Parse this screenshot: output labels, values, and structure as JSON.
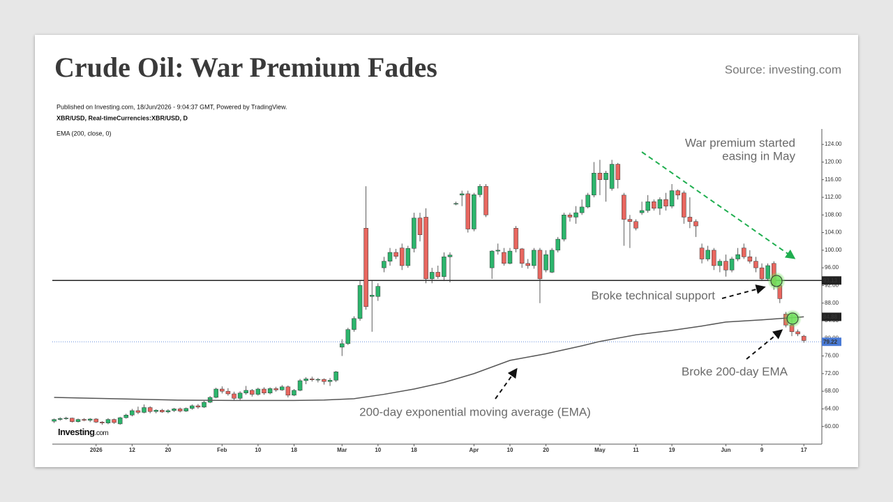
{
  "header": {
    "title": "Crude Oil: War Premium Fades",
    "source": "Source: investing.com"
  },
  "chart_data": {
    "type": "candlestick",
    "published": "Published on Investing.com, 18/Jun/2026 - 9:04:37 GMT, Powered by TradingView.",
    "symbol": "XBR/USD, Real-timeCurrencies:XBR/USD, D",
    "indicator": "EMA (200, close, 0)",
    "logo": "Investing",
    "logo_suffix": ".com",
    "annotations": [
      [
        "War premium started",
        "easing in May"
      ],
      "Broke technical support",
      "Broke 200-day EMA",
      "200-day exponential moving average (EMA)"
    ],
    "up_color": "#2cb56c",
    "down_color": "#e8665f",
    "xlim": [
      -0.3,
      128
    ],
    "xticks": [
      {
        "value": 7,
        "label": "2026"
      },
      {
        "value": 13,
        "label": "12"
      },
      {
        "value": 19,
        "label": "20"
      },
      {
        "value": 28,
        "label": "Feb"
      },
      {
        "value": 34,
        "label": "10"
      },
      {
        "value": 40,
        "label": "18"
      },
      {
        "value": 48,
        "label": "Mar"
      },
      {
        "value": 54,
        "label": "10"
      },
      {
        "value": 60,
        "label": "18"
      },
      {
        "value": 70,
        "label": "Apr"
      },
      {
        "value": 76,
        "label": "10"
      },
      {
        "value": 82,
        "label": "20"
      },
      {
        "value": 91,
        "label": "May"
      },
      {
        "value": 97,
        "label": "11"
      },
      {
        "value": 103,
        "label": "19"
      },
      {
        "value": 112,
        "label": "Jun"
      },
      {
        "value": 118,
        "label": "9"
      },
      {
        "value": 125,
        "label": "17"
      }
    ],
    "ylim": [
      56,
      127.5
    ],
    "yticks": [
      {
        "value": 60,
        "label": "60.00"
      },
      {
        "value": 64,
        "label": "64.00"
      },
      {
        "value": 68,
        "label": "68.00"
      },
      {
        "value": 72,
        "label": "72.00"
      },
      {
        "value": 76,
        "label": "76.00"
      },
      {
        "value": 80,
        "label": "80.00"
      },
      {
        "value": 84,
        "label": "84.00"
      },
      {
        "value": 88,
        "label": "88.00"
      },
      {
        "value": 92,
        "label": "92.00"
      },
      {
        "value": 96,
        "label": "96.00"
      },
      {
        "value": 100,
        "label": "100.00"
      },
      {
        "value": 104,
        "label": "104.00"
      },
      {
        "value": 108,
        "label": "108.00"
      },
      {
        "value": 112,
        "label": "112.00"
      },
      {
        "value": 116,
        "label": "116.00"
      },
      {
        "value": 120,
        "label": "120.00"
      },
      {
        "value": 124,
        "label": "124.00"
      }
    ],
    "candles": [
      [
        61.2,
        61.8,
        60.8,
        61.6
      ],
      [
        61.6,
        62.1,
        61.3,
        61.8
      ],
      [
        61.8,
        62.2,
        61.5,
        61.9
      ],
      [
        61.9,
        62.0,
        60.9,
        61.1
      ],
      [
        61.1,
        61.8,
        60.9,
        61.6
      ],
      [
        61.6,
        61.9,
        61.2,
        61.4
      ],
      [
        61.4,
        61.9,
        61.0,
        61.7
      ],
      [
        61.7,
        61.9,
        60.8,
        61.0
      ],
      [
        61.0,
        61.2,
        60.4,
        60.8
      ],
      [
        60.8,
        61.9,
        60.5,
        61.6
      ],
      [
        61.6,
        61.8,
        60.6,
        60.9
      ],
      [
        60.6,
        62.2,
        60.4,
        62.0
      ],
      [
        62.0,
        62.9,
        61.8,
        62.6
      ],
      [
        62.6,
        64.0,
        62.3,
        63.6
      ],
      [
        63.6,
        64.5,
        62.8,
        63.2
      ],
      [
        63.2,
        65.0,
        63.0,
        64.3
      ],
      [
        64.3,
        64.6,
        63.0,
        63.4
      ],
      [
        63.4,
        63.9,
        63.0,
        63.7
      ],
      [
        63.7,
        64.0,
        63.1,
        63.3
      ],
      [
        63.3,
        63.9,
        63.0,
        63.6
      ],
      [
        63.6,
        64.2,
        63.3,
        64.0
      ],
      [
        64.0,
        64.3,
        63.2,
        63.5
      ],
      [
        63.5,
        64.3,
        63.3,
        64.1
      ],
      [
        64.1,
        65.0,
        63.8,
        64.7
      ],
      [
        64.7,
        65.1,
        64.0,
        64.4
      ],
      [
        64.4,
        65.8,
        64.2,
        65.5
      ],
      [
        65.5,
        66.9,
        65.3,
        66.6
      ],
      [
        66.6,
        68.8,
        66.4,
        68.5
      ],
      [
        68.5,
        69.1,
        67.5,
        68.0
      ],
      [
        68.0,
        68.7,
        67.0,
        67.4
      ],
      [
        67.4,
        67.9,
        66.0,
        66.4
      ],
      [
        66.4,
        68.0,
        66.0,
        67.6
      ],
      [
        67.6,
        69.2,
        67.2,
        68.2
      ],
      [
        68.2,
        68.5,
        66.8,
        67.3
      ],
      [
        67.3,
        68.8,
        67.0,
        68.5
      ],
      [
        68.5,
        68.9,
        67.2,
        67.6
      ],
      [
        67.6,
        68.9,
        67.3,
        68.6
      ],
      [
        68.6,
        69.0,
        67.9,
        68.3
      ],
      [
        68.3,
        69.4,
        68.1,
        69.0
      ],
      [
        69.0,
        69.3,
        66.6,
        67.1
      ],
      [
        67.1,
        68.5,
        66.9,
        68.2
      ],
      [
        68.2,
        70.8,
        68.0,
        70.4
      ],
      [
        70.4,
        71.2,
        69.6,
        70.8
      ],
      [
        70.8,
        71.3,
        70.2,
        70.6
      ],
      [
        70.6,
        71.0,
        70.0,
        70.7
      ],
      [
        70.7,
        70.9,
        69.5,
        70.2
      ],
      [
        70.2,
        71.0,
        69.2,
        70.5
      ],
      [
        70.5,
        72.6,
        70.1,
        72.4
      ],
      [
        78.0,
        79.8,
        76.0,
        78.8
      ],
      [
        78.8,
        82.4,
        78.5,
        82.0
      ],
      [
        82.0,
        85.0,
        81.5,
        84.5
      ],
      [
        84.5,
        93.0,
        84.0,
        92.0
      ],
      [
        105.0,
        114.5,
        86.5,
        87.2
      ],
      [
        89.5,
        93.0,
        81.5,
        89.8
      ],
      [
        89.5,
        92.5,
        88.5,
        91.8
      ],
      [
        96.0,
        98.5,
        95.0,
        97.5
      ],
      [
        97.5,
        100.5,
        96.5,
        99.5
      ],
      [
        99.5,
        100.3,
        98.0,
        98.6
      ],
      [
        100.5,
        101.5,
        95.5,
        96.5
      ],
      [
        96.5,
        101.0,
        96.0,
        100.4
      ],
      [
        100.4,
        108.5,
        99.5,
        107.3
      ],
      [
        107.3,
        108.5,
        102.0,
        103.5
      ],
      [
        107.5,
        109.5,
        92.5,
        93.5
      ],
      [
        93.5,
        96.0,
        92.5,
        95.0
      ],
      [
        95.0,
        96.5,
        93.5,
        94.0
      ],
      [
        94.0,
        99.5,
        93.0,
        98.5
      ],
      [
        98.5,
        99.5,
        92.7,
        98.9
      ],
      [
        110.5,
        111.0,
        110.2,
        110.6
      ],
      [
        112.5,
        113.5,
        110.0,
        112.8
      ],
      [
        112.8,
        113.5,
        104.0,
        104.8
      ],
      [
        104.8,
        113.0,
        104.3,
        112.6
      ],
      [
        112.6,
        115.0,
        112.0,
        114.5
      ],
      [
        114.5,
        115.0,
        107.5,
        108.0
      ],
      [
        96.0,
        100.0,
        93.5,
        99.8
      ],
      [
        99.8,
        101.5,
        99.0,
        100.0
      ],
      [
        99.5,
        100.5,
        96.5,
        97.0
      ],
      [
        97.0,
        100.5,
        96.8,
        99.8
      ],
      [
        105.0,
        105.5,
        99.5,
        100.3
      ],
      [
        100.3,
        100.5,
        96.0,
        97.0
      ],
      [
        97.0,
        98.0,
        95.8,
        96.5
      ],
      [
        96.5,
        100.5,
        95.8,
        100.0
      ],
      [
        100.0,
        100.5,
        88.0,
        93.5
      ],
      [
        95.5,
        100.0,
        95.0,
        99.0
      ],
      [
        95.0,
        100.5,
        94.8,
        100.0
      ],
      [
        100.0,
        103.0,
        99.5,
        102.5
      ],
      [
        102.5,
        108.5,
        102.0,
        108.0
      ],
      [
        108.0,
        108.5,
        106.5,
        107.5
      ],
      [
        107.5,
        110.0,
        106.0,
        108.5
      ],
      [
        108.5,
        111.5,
        108.0,
        109.8
      ],
      [
        109.8,
        113.0,
        109.5,
        112.5
      ],
      [
        112.5,
        120.0,
        112.0,
        117.5
      ],
      [
        117.5,
        120.5,
        112.5,
        116.0
      ],
      [
        116.0,
        118.0,
        111.0,
        117.5
      ],
      [
        114.0,
        120.5,
        113.5,
        119.5
      ],
      [
        119.5,
        119.8,
        114.0,
        116.0
      ],
      [
        112.5,
        113.0,
        101.0,
        107.0
      ],
      [
        107.0,
        108.0,
        100.5,
        106.5
      ],
      [
        106.5,
        107.0,
        104.5,
        105.0
      ],
      [
        108.5,
        111.0,
        108.0,
        109.0
      ],
      [
        109.0,
        112.5,
        108.5,
        111.0
      ],
      [
        111.0,
        111.5,
        109.0,
        109.5
      ],
      [
        109.5,
        112.0,
        108.0,
        111.5
      ],
      [
        111.5,
        113.0,
        109.0,
        110.0
      ],
      [
        110.0,
        115.0,
        109.5,
        113.5
      ],
      [
        113.5,
        113.8,
        111.5,
        112.5
      ],
      [
        113.0,
        113.5,
        106.0,
        107.5
      ],
      [
        107.5,
        112.0,
        105.0,
        106.5
      ],
      [
        106.5,
        107.0,
        103.0,
        105.5
      ],
      [
        100.5,
        101.5,
        97.0,
        98.0
      ],
      [
        98.0,
        101.0,
        97.5,
        100.0
      ],
      [
        100.0,
        100.5,
        95.5,
        96.5
      ],
      [
        96.5,
        98.0,
        95.0,
        97.5
      ],
      [
        97.5,
        99.0,
        94.0,
        95.5
      ],
      [
        95.5,
        98.5,
        95.0,
        98.0
      ],
      [
        98.0,
        100.5,
        97.5,
        99.0
      ],
      [
        100.5,
        101.5,
        98.0,
        98.5
      ],
      [
        98.5,
        100.0,
        97.0,
        97.5
      ],
      [
        97.5,
        98.5,
        95.0,
        96.0
      ],
      [
        96.0,
        97.0,
        93.0,
        93.5
      ],
      [
        93.5,
        97.0,
        93.0,
        96.5
      ],
      [
        97.0,
        97.5,
        91.0,
        92.0
      ],
      [
        92.0,
        92.5,
        88.0,
        89.0
      ],
      [
        85.5,
        86.0,
        82.5,
        83.0
      ],
      [
        83.0,
        85.5,
        80.5,
        81.5
      ],
      [
        81.5,
        82.0,
        80.5,
        81.0
      ],
      [
        80.5,
        80.8,
        79.0,
        79.5
      ]
    ],
    "ema": {
      "color": "#555555",
      "x": [
        0,
        10,
        20,
        30,
        40,
        45,
        50,
        55,
        60,
        65,
        70,
        76,
        82,
        88,
        91,
        97,
        103,
        108,
        112,
        118,
        125
      ],
      "values": [
        66.6,
        66.3,
        66.0,
        65.9,
        65.9,
        66.0,
        66.3,
        67.3,
        68.5,
        70.0,
        72.0,
        75.0,
        76.5,
        78.3,
        79.3,
        80.8,
        81.8,
        82.8,
        83.7,
        84.2,
        84.88
      ]
    },
    "levels": [
      {
        "value": 93.13,
        "color": "#222222",
        "line": "solid"
      },
      {
        "value": 84.88,
        "color": "#222222",
        "line": "none"
      },
      {
        "value": 79.22,
        "color": "#4a7bd6",
        "line": "dotted"
      }
    ]
  }
}
